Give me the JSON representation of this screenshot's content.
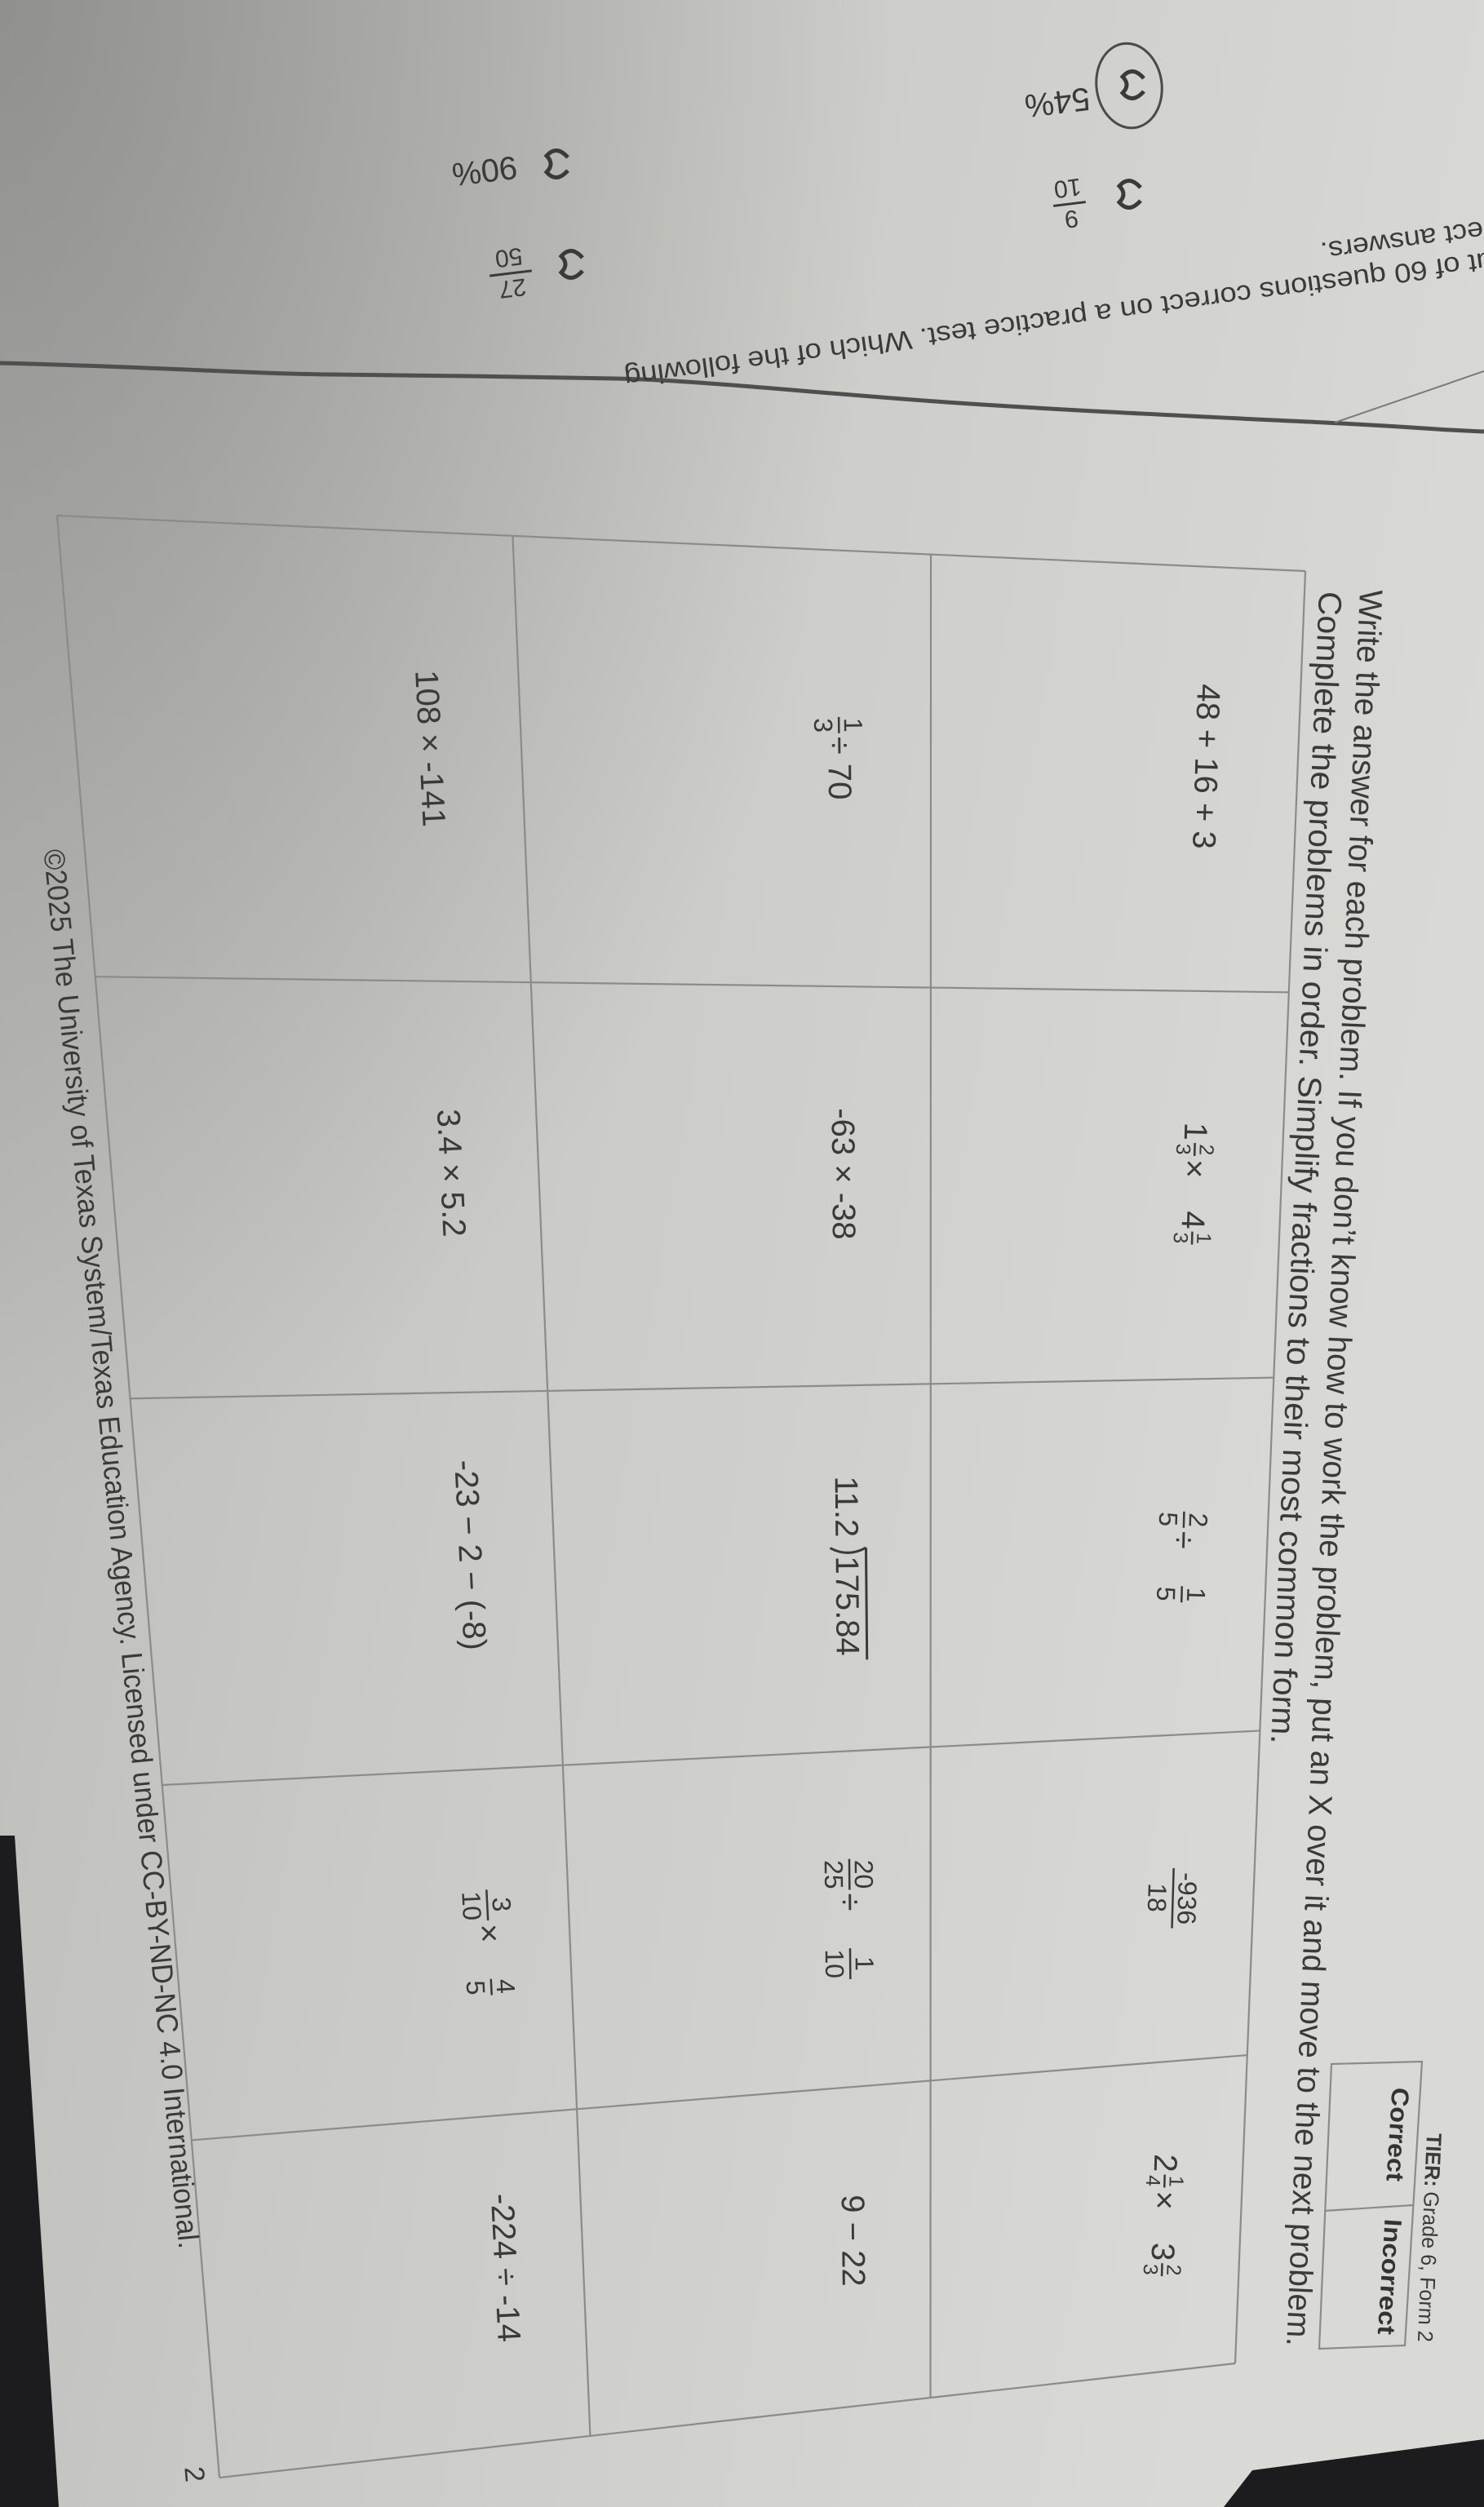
{
  "header": {
    "tier_label": "TIER:",
    "tier_value": "Grade 6, Form 2"
  },
  "score_box": {
    "correct_label": "Correct",
    "incorrect_label": "Incorrect"
  },
  "instructions": [
    "Write the answer for each problem. If you don’t know how to work the problem, put an X over it and move to the next problem.",
    "Complete the problems in order. Simplify fractions to their most common form."
  ],
  "problems": [
    [
      [
        {
          "t": "48 + 16 + 3"
        }
      ],
      [
        {
          "w": "1",
          "n": "2",
          "d": "3"
        },
        {
          "t": " × "
        },
        {
          "w": "4",
          "n": "1",
          "d": "3"
        }
      ],
      [
        {
          "n": "2",
          "d": "5"
        },
        {
          "t": " ÷ "
        },
        {
          "n": "1",
          "d": "5"
        }
      ],
      [
        {
          "n": "-936",
          "d": "18"
        }
      ],
      [
        {
          "w": "2",
          "n": "1",
          "d": "4"
        },
        {
          "t": " × "
        },
        {
          "w": "3",
          "n": "2",
          "d": "3"
        }
      ]
    ],
    [
      [
        {
          "n": "1",
          "d": "3"
        },
        {
          "t": " ÷ 70"
        }
      ],
      [
        {
          "t": "-63 × -38"
        }
      ],
      [
        {
          "div": "11.2",
          "dvd": "175.84"
        }
      ],
      [
        {
          "n": "20",
          "d": "25"
        },
        {
          "t": " ÷ "
        },
        {
          "n": "1",
          "d": "10"
        }
      ],
      [
        {
          "t": "9 − 22"
        }
      ]
    ],
    [
      [
        {
          "t": "108 × -141"
        }
      ],
      [
        {
          "t": "3.4 × 5.2"
        }
      ],
      [
        {
          "t": "-23 − 2 − (-8)"
        }
      ],
      [
        {
          "n": "3",
          "d": "10"
        },
        {
          "t": " × "
        },
        {
          "n": "4",
          "d": "5"
        }
      ],
      [
        {
          "t": "-224 ÷ -14"
        }
      ]
    ]
  ],
  "footer": {
    "copyright": "©2025 The University of Texas System/Texas Education Agency. Licensed under CC-BY-ND-NC 4.0 International.",
    "page_number": "2"
  },
  "previous_page": {
    "question_lines": [
      "ut of 60 questions correct on a practice test. Which of the following",
      "rect answers."
    ],
    "choices": [
      {
        "text": "54%",
        "circled": true
      },
      {
        "num": "9",
        "den": "10",
        "circled": false
      },
      {
        "text": "90%",
        "circled": false
      },
      {
        "num": "27",
        "den": "50",
        "circled": false
      }
    ]
  },
  "colors": {
    "paper": "#cfcfcc",
    "ink": "#3a3a3a",
    "table_line": "#8b8b89",
    "pencil": "#4f4f4f",
    "background": "#1c1c1f"
  }
}
